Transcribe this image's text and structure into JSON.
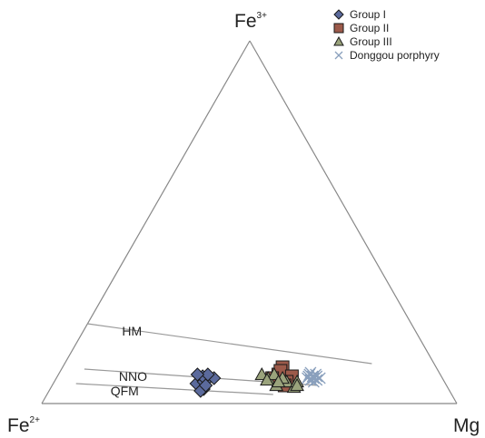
{
  "chart_data": {
    "type": "scatter",
    "subtype": "ternary",
    "vertices": {
      "top": {
        "base": "Fe",
        "sup": "3+"
      },
      "left": {
        "base": "Fe",
        "sup": "2+"
      },
      "right": {
        "base": "Mg",
        "sup": ""
      }
    },
    "buffer_lines": [
      {
        "label": "HM",
        "start": [
          0.78,
          0.22,
          0.0
        ],
        "end": [
          0.15,
          0.11,
          0.74
        ]
      },
      {
        "label": "NNO",
        "start": [
          0.85,
          0.095,
          0.055
        ],
        "end": [
          0.31,
          0.05,
          0.64
        ]
      },
      {
        "label": "QFM",
        "start": [
          0.89,
          0.055,
          0.055
        ],
        "end": [
          0.43,
          0.025,
          0.545
        ]
      }
    ],
    "series": [
      {
        "name": "Group I",
        "marker": "diamond",
        "color": "#5b6a9c",
        "points": [
          [
            0.59,
            0.05,
            0.36
          ],
          [
            0.6,
            0.055,
            0.345
          ],
          [
            0.58,
            0.06,
            0.36
          ],
          [
            0.565,
            0.07,
            0.365
          ],
          [
            0.57,
            0.065,
            0.365
          ],
          [
            0.575,
            0.075,
            0.35
          ],
          [
            0.59,
            0.04,
            0.37
          ],
          [
            0.6,
            0.035,
            0.365
          ],
          [
            0.58,
            0.05,
            0.37
          ],
          [
            0.55,
            0.07,
            0.38
          ],
          [
            0.56,
            0.08,
            0.36
          ],
          [
            0.585,
            0.08,
            0.335
          ]
        ]
      },
      {
        "name": "Group II",
        "marker": "square",
        "color": "#9c5a4a",
        "points": [
          [
            0.4,
            0.06,
            0.54
          ],
          [
            0.39,
            0.08,
            0.53
          ],
          [
            0.37,
            0.1,
            0.53
          ],
          [
            0.38,
            0.09,
            0.53
          ],
          [
            0.41,
            0.07,
            0.52
          ],
          [
            0.36,
            0.075,
            0.565
          ],
          [
            0.38,
            0.06,
            0.56
          ],
          [
            0.39,
            0.05,
            0.56
          ]
        ]
      },
      {
        "name": "Group III",
        "marker": "triangle",
        "color": "#9aa37c",
        "points": [
          [
            0.43,
            0.08,
            0.49
          ],
          [
            0.42,
            0.07,
            0.51
          ],
          [
            0.4,
            0.08,
            0.52
          ],
          [
            0.39,
            0.06,
            0.55
          ],
          [
            0.38,
            0.06,
            0.56
          ],
          [
            0.37,
            0.045,
            0.585
          ],
          [
            0.355,
            0.06,
            0.585
          ],
          [
            0.36,
            0.05,
            0.59
          ],
          [
            0.41,
            0.05,
            0.54
          ],
          [
            0.425,
            0.065,
            0.51
          ],
          [
            0.385,
            0.07,
            0.545
          ],
          [
            0.4,
            0.06,
            0.54
          ]
        ]
      },
      {
        "name": "Donggou porphyry",
        "marker": "x",
        "color": "#8aa0bd",
        "points": [
          [
            0.32,
            0.075,
            0.605
          ],
          [
            0.31,
            0.07,
            0.62
          ],
          [
            0.315,
            0.08,
            0.605
          ],
          [
            0.3,
            0.075,
            0.625
          ],
          [
            0.305,
            0.065,
            0.63
          ],
          [
            0.32,
            0.065,
            0.615
          ],
          [
            0.31,
            0.085,
            0.605
          ],
          [
            0.295,
            0.07,
            0.635
          ],
          [
            0.325,
            0.07,
            0.605
          ],
          [
            0.3,
            0.08,
            0.62
          ],
          [
            0.315,
            0.06,
            0.625
          ],
          [
            0.31,
            0.075,
            0.615
          ]
        ]
      }
    ],
    "legend_position": "top-right"
  }
}
